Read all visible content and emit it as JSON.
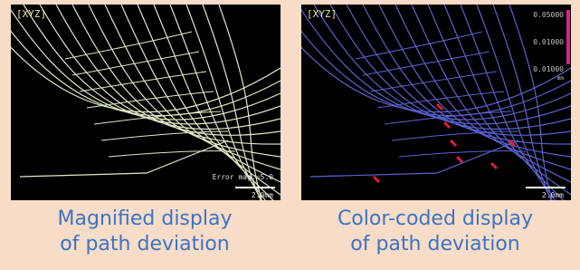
{
  "panels": [
    {
      "tag": "[XYZ]",
      "annotation": "Error mag.=5.0",
      "scale": "2.0mm",
      "caption": [
        "Magnified display",
        "of path deviation"
      ]
    },
    {
      "tag": "[XYZ]",
      "legend": [
        "0.05000",
        "0.01000",
        "0.01000",
        "mm"
      ],
      "scale": "2.0mm",
      "caption": [
        "Color-coded display",
        "of path deviation"
      ]
    }
  ]
}
